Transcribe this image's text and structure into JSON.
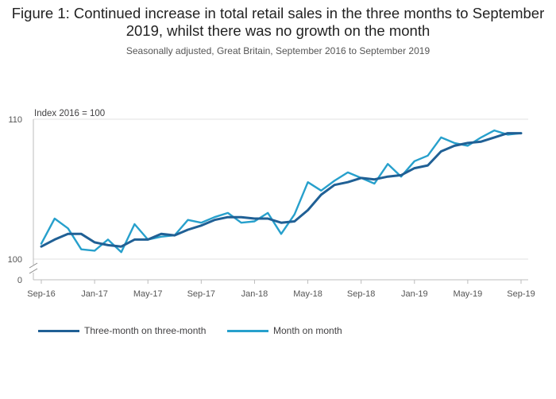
{
  "chart_data": {
    "type": "line",
    "title": "Figure 1: Continued increase in total retail sales in the three months to September 2019, whilst there was no growth on the month",
    "subtitle": "Seasonally adjusted, Great Britain, September 2016 to September 2019",
    "ylabel": "Index 2016 = 100",
    "ylim": [
      100,
      110
    ],
    "yticks": [
      "110",
      "100",
      "0"
    ],
    "axis_break": true,
    "xticks": [
      "Sep-16",
      "Jan-17",
      "May-17",
      "Sep-17",
      "Jan-18",
      "May-18",
      "Sep-18",
      "Jan-19",
      "May-19",
      "Sep-19"
    ],
    "x": [
      "Sep-16",
      "Oct-16",
      "Nov-16",
      "Dec-16",
      "Jan-17",
      "Feb-17",
      "Mar-17",
      "Apr-17",
      "May-17",
      "Jun-17",
      "Jul-17",
      "Aug-17",
      "Sep-17",
      "Oct-17",
      "Nov-17",
      "Dec-17",
      "Jan-18",
      "Feb-18",
      "Mar-18",
      "Apr-18",
      "May-18",
      "Jun-18",
      "Jul-18",
      "Aug-18",
      "Sep-18",
      "Oct-18",
      "Nov-18",
      "Dec-18",
      "Jan-19",
      "Feb-19",
      "Mar-19",
      "Apr-19",
      "May-19",
      "Jun-19",
      "Jul-19",
      "Aug-19",
      "Sep-19"
    ],
    "series": [
      {
        "name": "Three-month on three-month",
        "color": "#206095",
        "values": [
          100.9,
          101.4,
          101.8,
          101.8,
          101.2,
          101.0,
          100.9,
          101.4,
          101.4,
          101.8,
          101.7,
          102.1,
          102.4,
          102.8,
          103.0,
          103.0,
          102.9,
          102.9,
          102.6,
          102.7,
          103.5,
          104.6,
          105.3,
          105.5,
          105.8,
          105.7,
          105.9,
          106.0,
          106.5,
          106.7,
          107.7,
          108.1,
          108.3,
          108.4,
          108.7,
          109.0,
          109.0
        ]
      },
      {
        "name": "Month on month",
        "color": "#27a0cc",
        "values": [
          101.1,
          102.9,
          102.2,
          100.7,
          100.6,
          101.4,
          100.5,
          102.5,
          101.4,
          101.6,
          101.7,
          102.8,
          102.6,
          103.0,
          103.3,
          102.6,
          102.7,
          103.3,
          101.8,
          103.2,
          105.5,
          104.9,
          105.6,
          106.2,
          105.8,
          105.4,
          106.8,
          105.9,
          107.0,
          107.4,
          108.7,
          108.3,
          108.1,
          108.7,
          109.2,
          108.9,
          109.0
        ]
      }
    ]
  }
}
